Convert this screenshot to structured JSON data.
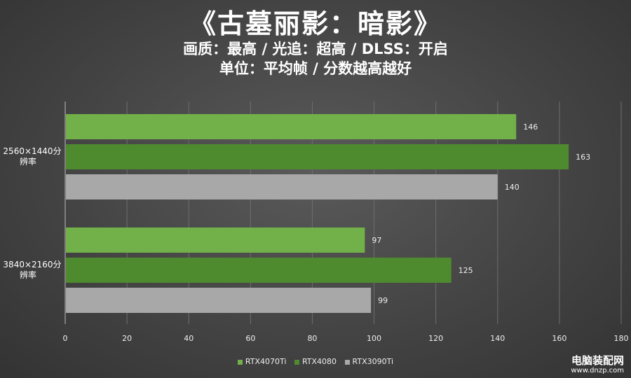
{
  "header": {
    "title": "《古墓丽影：暗影》",
    "subtitle": "画质：最高 / 光追：超高 / DLSS：开启",
    "subtitle2": "单位：平均帧 / 分数越高越好"
  },
  "chart_data": {
    "type": "bar",
    "orientation": "horizontal",
    "title": "《古墓丽影：暗影》",
    "categories": [
      "2560×1440分辨率",
      "3840×2160分辨率"
    ],
    "series": [
      {
        "name": "RTX4070Ti",
        "color": "#72b04a",
        "values": [
          146,
          97
        ]
      },
      {
        "name": "RTX4080",
        "color": "#4e8a2e",
        "values": [
          163,
          125
        ]
      },
      {
        "name": "RTX3090Ti",
        "color": "#a8a8a8",
        "values": [
          140,
          99
        ]
      }
    ],
    "xlim": [
      0,
      180
    ],
    "xticks": [
      0,
      20,
      40,
      60,
      80,
      100,
      120,
      140,
      160,
      180
    ],
    "grid": true,
    "legend": "bottom-center"
  },
  "watermark": {
    "main": "电脑装配网",
    "url": "www.dnzp.com"
  }
}
